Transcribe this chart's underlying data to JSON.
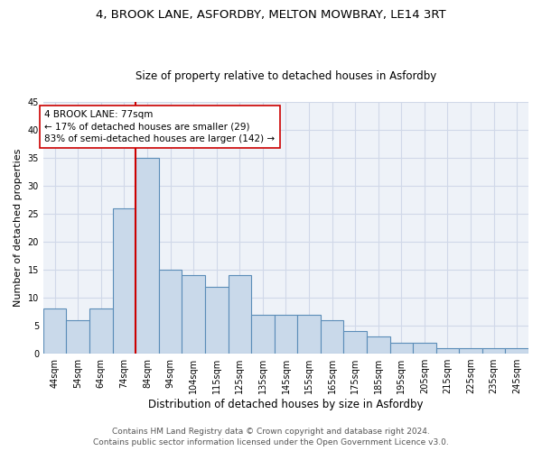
{
  "title1": "4, BROOK LANE, ASFORDBY, MELTON MOWBRAY, LE14 3RT",
  "title2": "Size of property relative to detached houses in Asfordby",
  "xlabel": "Distribution of detached houses by size in Asfordby",
  "ylabel": "Number of detached properties",
  "categories": [
    "44sqm",
    "54sqm",
    "64sqm",
    "74sqm",
    "84sqm",
    "94sqm",
    "104sqm",
    "115sqm",
    "125sqm",
    "135sqm",
    "145sqm",
    "155sqm",
    "165sqm",
    "175sqm",
    "185sqm",
    "195sqm",
    "205sqm",
    "215sqm",
    "225sqm",
    "235sqm",
    "245sqm"
  ],
  "values": [
    8,
    6,
    8,
    26,
    35,
    15,
    14,
    12,
    14,
    7,
    7,
    7,
    6,
    4,
    3,
    2,
    2,
    1,
    1,
    1,
    1
  ],
  "bar_color": "#c9d9ea",
  "bar_edge_color": "#5b8db8",
  "bar_linewidth": 0.8,
  "vline_x": 3.5,
  "vline_color": "#cc0000",
  "vline_linewidth": 1.5,
  "annotation_text": "4 BROOK LANE: 77sqm\n← 17% of detached houses are smaller (29)\n83% of semi-detached houses are larger (142) →",
  "annotation_box_color": "white",
  "annotation_box_edge_color": "#cc0000",
  "ylim": [
    0,
    45
  ],
  "yticks": [
    0,
    5,
    10,
    15,
    20,
    25,
    30,
    35,
    40,
    45
  ],
  "grid_color": "#d0d8e8",
  "bg_color": "#eef2f8",
  "footer1": "Contains HM Land Registry data © Crown copyright and database right 2024.",
  "footer2": "Contains public sector information licensed under the Open Government Licence v3.0.",
  "title1_fontsize": 9.5,
  "title2_fontsize": 8.5,
  "xlabel_fontsize": 8.5,
  "ylabel_fontsize": 8,
  "tick_fontsize": 7,
  "annotation_fontsize": 7.5,
  "footer_fontsize": 6.5
}
